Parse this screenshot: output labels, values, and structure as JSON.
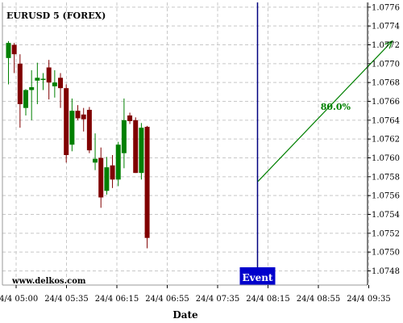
{
  "chart_data": {
    "type": "candlestick",
    "title": "EURUSD 5 (FOREX)",
    "watermark": "www.delkos.com",
    "xlabel": "Date",
    "ylabel": "",
    "grid": true,
    "colors": {
      "up": "#008000",
      "down": "#800000",
      "event": "#0000cc",
      "arrow": "#008000"
    },
    "x_ticks": [
      "24/4 05:00",
      "24/4 05:35",
      "24/4 06:15",
      "24/4 06:55",
      "24/4 07:35",
      "24/4 08:15",
      "24/4 08:55",
      "24/4 09:35"
    ],
    "y_ticks": [
      "1.0748",
      "1.0750",
      "1.0752",
      "1.0754",
      "1.0756",
      "1.0758",
      "1.0760",
      "1.0762",
      "1.0764",
      "1.0766",
      "1.0768",
      "1.0770",
      "1.0772",
      "1.0774",
      "1.0776"
    ],
    "ylim": [
      1.07465,
      1.07765
    ],
    "candles": [
      {
        "o": 1.07706,
        "h": 1.07724,
        "l": 1.07678,
        "c": 1.07722
      },
      {
        "o": 1.0772,
        "h": 1.07722,
        "l": 1.0769,
        "c": 1.0771
      },
      {
        "o": 1.077,
        "h": 1.0771,
        "l": 1.07632,
        "c": 1.07657
      },
      {
        "o": 1.07653,
        "h": 1.07673,
        "l": 1.07645,
        "c": 1.07672
      },
      {
        "o": 1.07672,
        "h": 1.07693,
        "l": 1.0764,
        "c": 1.07675
      },
      {
        "o": 1.07682,
        "h": 1.07701,
        "l": 1.07657,
        "c": 1.07685
      },
      {
        "o": 1.07683,
        "h": 1.0769,
        "l": 1.07672,
        "c": 1.07684
      },
      {
        "o": 1.07696,
        "h": 1.07704,
        "l": 1.07662,
        "c": 1.0768
      },
      {
        "o": 1.07676,
        "h": 1.07693,
        "l": 1.07664,
        "c": 1.0768
      },
      {
        "o": 1.07685,
        "h": 1.0769,
        "l": 1.07653,
        "c": 1.07674
      },
      {
        "o": 1.07674,
        "h": 1.07678,
        "l": 1.07595,
        "c": 1.07603
      },
      {
        "o": 1.07614,
        "h": 1.07663,
        "l": 1.07607,
        "c": 1.0765
      },
      {
        "o": 1.0765,
        "h": 1.07656,
        "l": 1.0764,
        "c": 1.07642
      },
      {
        "o": 1.07646,
        "h": 1.07653,
        "l": 1.07628,
        "c": 1.07641
      },
      {
        "o": 1.07651,
        "h": 1.07654,
        "l": 1.07605,
        "c": 1.07608
      },
      {
        "o": 1.07595,
        "h": 1.07626,
        "l": 1.07587,
        "c": 1.07599
      },
      {
        "o": 1.076,
        "h": 1.07611,
        "l": 1.07547,
        "c": 1.07558
      },
      {
        "o": 1.07565,
        "h": 1.07601,
        "l": 1.07561,
        "c": 1.0759
      },
      {
        "o": 1.07592,
        "h": 1.07603,
        "l": 1.07568,
        "c": 1.07577
      },
      {
        "o": 1.07577,
        "h": 1.07617,
        "l": 1.0757,
        "c": 1.07614
      },
      {
        "o": 1.07605,
        "h": 1.07663,
        "l": 1.07589,
        "c": 1.0764
      },
      {
        "o": 1.07645,
        "h": 1.07648,
        "l": 1.07636,
        "c": 1.07639
      },
      {
        "o": 1.0764,
        "h": 1.07643,
        "l": 1.07584,
        "c": 1.07584
      },
      {
        "o": 1.07584,
        "h": 1.07637,
        "l": 1.07577,
        "c": 1.07632
      },
      {
        "o": 1.07633,
        "h": 1.07634,
        "l": 1.07504,
        "c": 1.07515
      }
    ],
    "event": {
      "label": "Event",
      "x_time": "24/4 08:00"
    },
    "forecast": {
      "label": "80.0%",
      "from_time": "24/4 08:00",
      "from_value": 1.07575,
      "to_time": "24/4 09:40",
      "to_value": 1.07724
    }
  }
}
